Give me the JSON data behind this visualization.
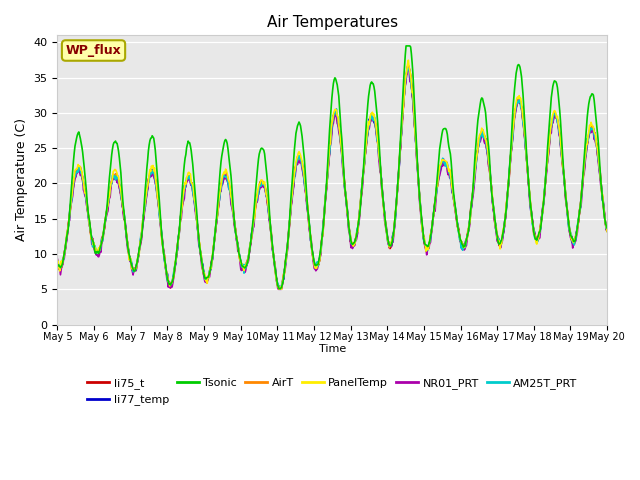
{
  "title": "Air Temperatures",
  "xlabel": "Time",
  "ylabel": "Air Temperature (C)",
  "ylim": [
    0,
    41
  ],
  "yticks": [
    0,
    5,
    10,
    15,
    20,
    25,
    30,
    35,
    40
  ],
  "x_tick_labels": [
    "May 5",
    "May 6",
    "May 7",
    "May 8",
    "May 9",
    "May 10",
    "May 11",
    "May 12",
    "May 13",
    "May 14",
    "May 15",
    "May 16",
    "May 17",
    "May 18",
    "May 19",
    "May 20"
  ],
  "series_order": [
    "li75_t",
    "li77_temp",
    "AirT",
    "NR01_PRT",
    "AM25T_PRT",
    "PanelTemp",
    "Tsonic"
  ],
  "legend_order": [
    "li75_t",
    "li77_temp",
    "Tsonic",
    "AirT",
    "PanelTemp",
    "NR01_PRT",
    "AM25T_PRT"
  ],
  "series": {
    "li75_t": {
      "color": "#cc0000",
      "lw": 1.2
    },
    "li77_temp": {
      "color": "#0000cc",
      "lw": 1.2
    },
    "Tsonic": {
      "color": "#00cc00",
      "lw": 1.2
    },
    "AirT": {
      "color": "#ff8800",
      "lw": 1.2
    },
    "PanelTemp": {
      "color": "#ffee00",
      "lw": 1.2
    },
    "NR01_PRT": {
      "color": "#aa00aa",
      "lw": 1.2
    },
    "AM25T_PRT": {
      "color": "#00cccc",
      "lw": 1.2
    }
  },
  "wp_flux_box": {
    "text": "WP_flux",
    "facecolor": "#ffffaa",
    "edgecolor": "#aaa800",
    "textcolor": "#880000"
  },
  "plot_bg_color": "#e8e8e8",
  "grid_color": "#ffffff",
  "n_days": 15,
  "pts_per_day": 48
}
